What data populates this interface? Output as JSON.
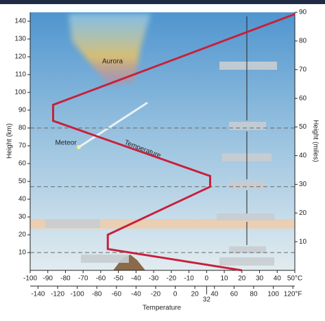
{
  "chart_data": {
    "type": "line",
    "y_label": "Height (km)",
    "y2_label": "Height (miles)",
    "x_label": "Temperature",
    "x": [
      20,
      -56,
      -56,
      2,
      2,
      -87,
      -87,
      50
    ],
    "series": [
      {
        "name": "Temperature",
        "color": "#c8203a",
        "values": [
          0,
          12,
          20,
          47,
          53,
          84,
          93,
          144
        ]
      }
    ],
    "xlim": [
      -100,
      50
    ],
    "xticks": [
      -100,
      -90,
      -80,
      -70,
      -60,
      -50,
      -40,
      -30,
      -20,
      -10,
      0,
      10,
      20,
      30,
      40,
      {
        "value": 50,
        "label": "50°C"
      }
    ],
    "x2lim": [
      -148,
      122
    ],
    "x2ticks": [
      -140,
      -120,
      -100,
      -80,
      -60,
      -40,
      -20,
      0,
      20,
      32,
      40,
      60,
      80,
      100,
      {
        "value": 120,
        "label": "120°F"
      }
    ],
    "ylim": [
      0,
      145
    ],
    "yticks": [
      10,
      20,
      30,
      40,
      50,
      60,
      70,
      80,
      90,
      100,
      110,
      120,
      130,
      140
    ],
    "y2lim": [
      0,
      90
    ],
    "y2ticks": [
      10,
      20,
      30,
      40,
      50,
      60,
      70,
      80,
      90
    ],
    "hlines": [
      80,
      47,
      10
    ],
    "annotations": [
      "Aurora",
      "Meteor"
    ]
  }
}
